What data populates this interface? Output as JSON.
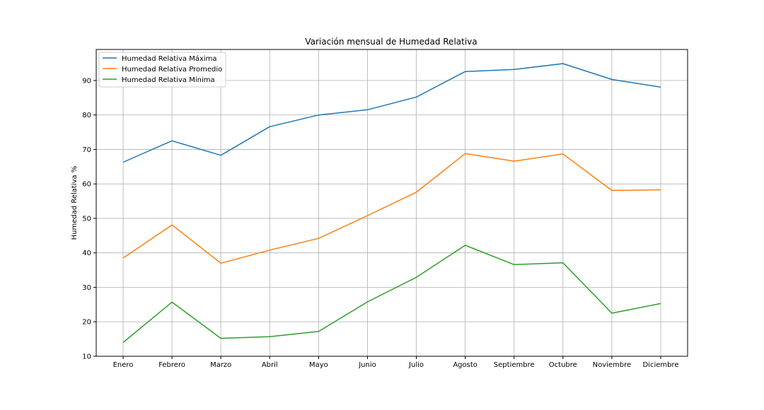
{
  "chart_data": {
    "type": "line",
    "title": "Variación mensual de Humedad Relativa",
    "xlabel": "",
    "ylabel": "Humedad Relativa %",
    "categories": [
      "Enero",
      "Febrero",
      "Marzo",
      "Abril",
      "Mayo",
      "Junio",
      "Julio",
      "Agosto",
      "Septiembre",
      "Octubre",
      "Noviembre",
      "Diciembre"
    ],
    "ylim": [
      10,
      99
    ],
    "yticks": [
      10,
      20,
      30,
      40,
      50,
      60,
      70,
      80,
      90
    ],
    "grid": true,
    "legend_position": "top-left",
    "series": [
      {
        "name": "Humedad Relativa Máxima",
        "color": "#1f77b4",
        "values": [
          66.3,
          72.5,
          68.3,
          76.6,
          80.0,
          81.5,
          85.2,
          92.6,
          93.2,
          94.9,
          90.3,
          88.1
        ]
      },
      {
        "name": "Humedad Relativa Promedio",
        "color": "#ff7f0e",
        "values": [
          38.5,
          48.1,
          37.0,
          40.8,
          44.2,
          50.8,
          57.6,
          68.8,
          66.6,
          68.7,
          58.1,
          58.3
        ]
      },
      {
        "name": "Humedad Relativa Mínima",
        "color": "#2ca02c",
        "values": [
          14.0,
          25.7,
          15.2,
          15.7,
          17.2,
          25.8,
          32.9,
          42.2,
          36.6,
          37.1,
          22.5,
          25.3
        ]
      }
    ]
  }
}
